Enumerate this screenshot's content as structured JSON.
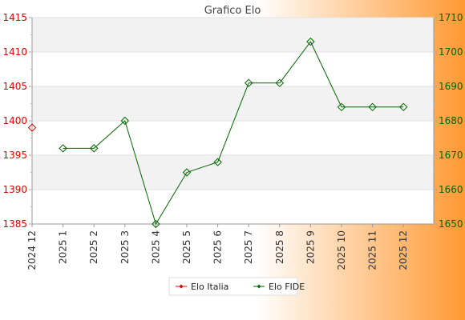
{
  "chart_data": {
    "type": "line",
    "title": "Grafico Elo",
    "categories": [
      "2024 12",
      "2025 1",
      "2025 2",
      "2025 3",
      "2025 4",
      "2025 5",
      "2025 6",
      "2025 7",
      "2025 8",
      "2025 9",
      "2025 10",
      "2025 11",
      "2025 12"
    ],
    "series": [
      {
        "name": "Elo Italia",
        "axis": "left",
        "color": "#dd0000",
        "values": [
          1399,
          null,
          null,
          null,
          null,
          null,
          null,
          null,
          null,
          null,
          null,
          null,
          null
        ]
      },
      {
        "name": "Elo FIDE",
        "axis": "right",
        "color": "#006600",
        "values": [
          null,
          1672,
          1672,
          1680,
          1650,
          1665,
          1668,
          1691,
          1691,
          1703,
          1684,
          1684,
          1684
        ]
      }
    ],
    "y_left": {
      "min": 1385,
      "max": 1415,
      "ticks": [
        1385,
        1390,
        1395,
        1400,
        1405,
        1410,
        1415
      ],
      "color": "#dd0000"
    },
    "y_right": {
      "min": 1650,
      "max": 1710,
      "ticks": [
        1650,
        1660,
        1670,
        1680,
        1690,
        1700,
        1710
      ],
      "color": "#006600"
    },
    "grid": true,
    "legend_position": "bottom",
    "background_gradient": [
      "#ffffff",
      "#ff9933"
    ]
  }
}
